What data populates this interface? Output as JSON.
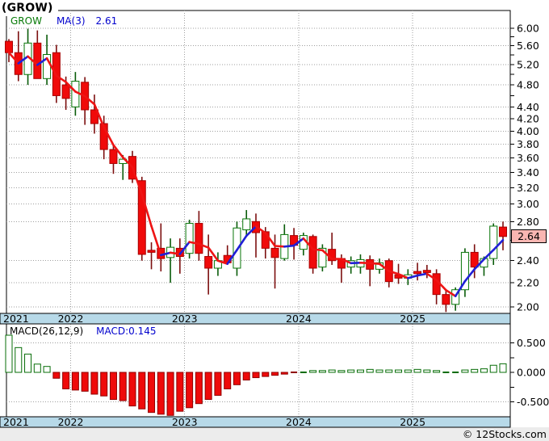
{
  "title": "(GROW)",
  "watermark": "© 12Stocks.com",
  "price_pane": {
    "legend": {
      "symbol": "GROW",
      "ma_label": "MA(3)",
      "ma_value": "2.61"
    },
    "last_price_label": "2.64",
    "y_axis_labels": [
      6.0,
      5.6,
      5.2,
      4.8,
      4.4,
      4.2,
      4.0,
      3.8,
      3.6,
      3.4,
      3.2,
      3.0,
      2.8,
      2.4,
      2.2,
      2.0
    ]
  },
  "macd_pane": {
    "label": "MACD(26,12,9)",
    "value": "MACD:0.145",
    "y_axis_labels": [
      0.5,
      0.0,
      -0.5
    ]
  },
  "x_axis_labels": [
    "2021",
    "2022",
    "2023",
    "2024",
    "2025"
  ],
  "colors": {
    "up_body_fill": "#ffffff",
    "up_body_border": "#077507",
    "up_wick": "#0a5c0a",
    "down_body_fill": "#f00a0a",
    "down_body_border": "#a80000",
    "down_wick": "#7c0f0f",
    "ma_rising": "#2020d6",
    "ma_falling": "#ee1414",
    "macd_pos_border": "#076d07",
    "macd_neg_fill": "#ef0a0a",
    "macd_neg_border": "#8f0000",
    "axis_band": "#b7d9e8",
    "grid": "#9f9f9f",
    "marker_fill": "#f9b6b2",
    "footer_bg": "#ececec"
  },
  "chart_data": {
    "type": "candlestick",
    "symbol": "GROW",
    "title": "(GROW)",
    "overlays": [
      "MA(3)"
    ],
    "ma_period": 3,
    "ma_last_value": 2.61,
    "last_close": 2.64,
    "y_scale": "log",
    "y_axis_range": [
      2.0,
      6.0
    ],
    "y_tick_step": 0.2,
    "y_ticks_labeled": [
      6.0,
      5.6,
      5.2,
      4.8,
      4.4,
      4.2,
      4.0,
      3.8,
      3.6,
      3.4,
      3.2,
      3.0,
      2.8,
      2.4,
      2.2,
      2.0
    ],
    "x_years": [
      "2021",
      "2022",
      "2023",
      "2024",
      "2025"
    ],
    "year_start_indices": [
      0,
      7,
      19,
      31,
      43
    ],
    "candles_ohlc": [
      [
        5.7,
        5.75,
        5.25,
        5.45
      ],
      [
        5.45,
        5.93,
        4.87,
        5.0
      ],
      [
        5.0,
        5.99,
        4.8,
        5.66
      ],
      [
        5.66,
        5.95,
        4.95,
        4.92
      ],
      [
        4.92,
        5.85,
        4.8,
        5.41
      ],
      [
        5.45,
        5.62,
        4.47,
        4.6
      ],
      [
        4.8,
        4.96,
        4.35,
        4.55
      ],
      [
        4.4,
        5.05,
        4.25,
        4.87
      ],
      [
        4.85,
        4.95,
        4.1,
        4.35
      ],
      [
        4.35,
        4.62,
        3.96,
        4.12
      ],
      [
        4.12,
        4.25,
        3.58,
        3.72
      ],
      [
        3.72,
        3.8,
        3.38,
        3.52
      ],
      [
        3.52,
        3.64,
        3.3,
        3.58
      ],
      [
        3.62,
        3.7,
        3.26,
        3.31
      ],
      [
        3.29,
        3.34,
        2.4,
        2.46
      ],
      [
        2.5,
        2.58,
        2.32,
        2.48
      ],
      [
        2.52,
        2.78,
        2.3,
        2.42
      ],
      [
        2.43,
        2.62,
        2.2,
        2.53
      ],
      [
        2.52,
        2.62,
        2.28,
        2.44
      ],
      [
        2.47,
        2.82,
        2.42,
        2.78
      ],
      [
        2.78,
        2.92,
        2.4,
        2.47
      ],
      [
        2.44,
        2.66,
        2.1,
        2.33
      ],
      [
        2.33,
        2.48,
        2.26,
        2.4
      ],
      [
        2.45,
        2.55,
        2.36,
        2.38
      ],
      [
        2.33,
        2.8,
        2.26,
        2.73
      ],
      [
        2.71,
        2.93,
        2.65,
        2.83
      ],
      [
        2.8,
        2.89,
        2.43,
        2.68
      ],
      [
        2.69,
        2.74,
        2.42,
        2.52
      ],
      [
        2.52,
        2.66,
        2.15,
        2.43
      ],
      [
        2.42,
        2.77,
        2.4,
        2.66
      ],
      [
        2.65,
        2.73,
        2.41,
        2.55
      ],
      [
        2.51,
        2.68,
        2.45,
        2.65
      ],
      [
        2.64,
        2.66,
        2.28,
        2.33
      ],
      [
        2.34,
        2.56,
        2.3,
        2.52
      ],
      [
        2.51,
        2.68,
        2.36,
        2.4
      ],
      [
        2.42,
        2.46,
        2.2,
        2.33
      ],
      [
        2.34,
        2.44,
        2.28,
        2.4
      ],
      [
        2.34,
        2.46,
        2.28,
        2.41
      ],
      [
        2.41,
        2.45,
        2.17,
        2.32
      ],
      [
        2.32,
        2.42,
        2.28,
        2.38
      ],
      [
        2.4,
        2.42,
        2.16,
        2.21
      ],
      [
        2.27,
        2.37,
        2.19,
        2.24
      ],
      [
        2.24,
        2.32,
        2.18,
        2.27
      ],
      [
        2.3,
        2.38,
        2.22,
        2.28
      ],
      [
        2.31,
        2.36,
        2.24,
        2.29
      ],
      [
        2.28,
        2.32,
        2.02,
        2.1
      ],
      [
        2.1,
        2.14,
        1.96,
        2.02
      ],
      [
        2.02,
        2.16,
        1.97,
        2.14
      ],
      [
        2.14,
        2.52,
        2.08,
        2.48
      ],
      [
        2.48,
        2.56,
        2.24,
        2.34
      ],
      [
        2.34,
        2.44,
        2.26,
        2.42
      ],
      [
        2.42,
        2.78,
        2.36,
        2.75
      ],
      [
        2.74,
        2.8,
        2.5,
        2.64
      ]
    ],
    "macd": {
      "params": "26,12,9",
      "last_value": 0.145,
      "y_ticks_labeled": [
        0.5,
        0.0,
        -0.5
      ],
      "y_tick_step": 0.25,
      "histogram": [
        0.63,
        0.42,
        0.31,
        0.14,
        0.1,
        -0.1,
        -0.28,
        -0.3,
        -0.32,
        -0.37,
        -0.4,
        -0.46,
        -0.48,
        -0.57,
        -0.62,
        -0.68,
        -0.71,
        -0.73,
        -0.66,
        -0.6,
        -0.53,
        -0.46,
        -0.39,
        -0.28,
        -0.21,
        -0.13,
        -0.09,
        -0.07,
        -0.05,
        -0.03,
        -0.02,
        0.01,
        0.03,
        0.03,
        0.04,
        0.03,
        0.04,
        0.04,
        0.05,
        0.04,
        0.04,
        0.04,
        0.04,
        0.05,
        0.04,
        0.03,
        0.01,
        0.01,
        0.04,
        0.05,
        0.06,
        0.12,
        0.145
      ]
    }
  }
}
